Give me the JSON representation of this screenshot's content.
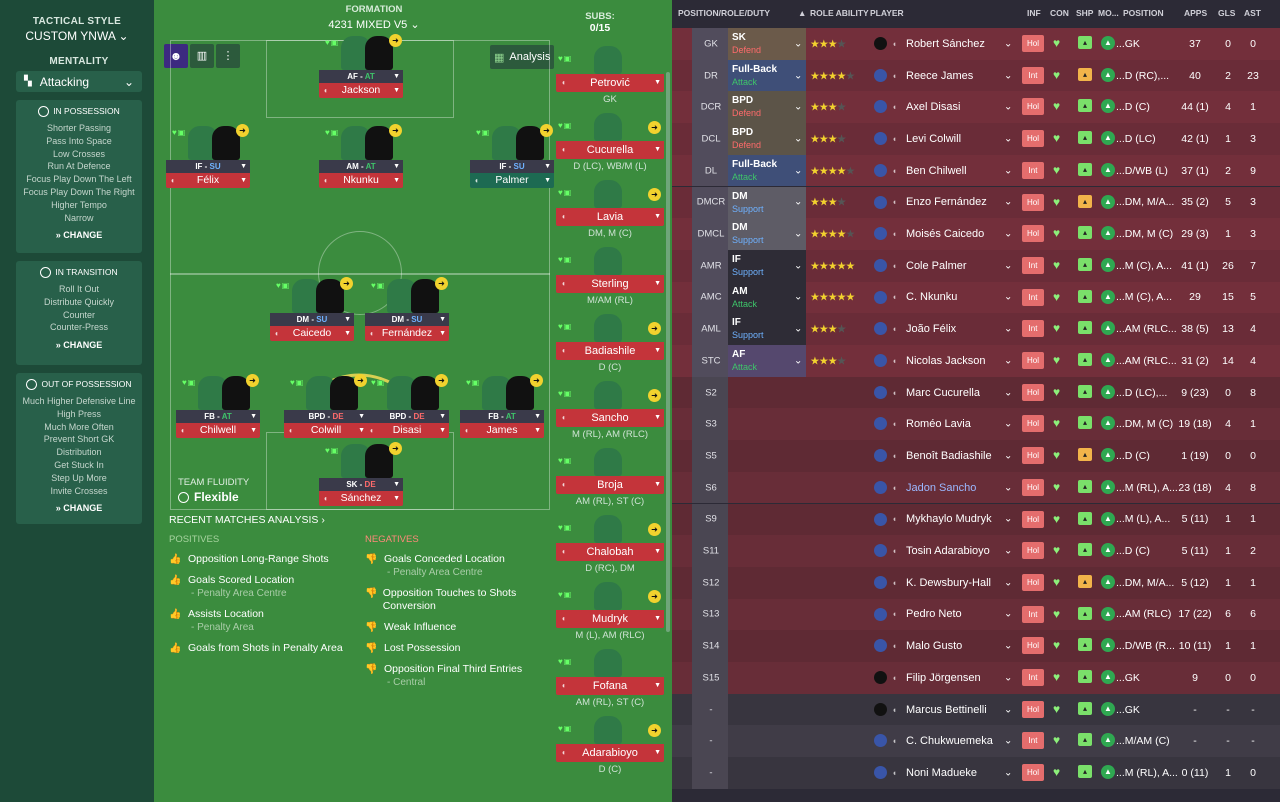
{
  "sidebar": {
    "tactical_style_label": "TACTICAL STYLE",
    "tactic_name": "CUSTOM YNWA",
    "mentality_label": "MENTALITY",
    "mentality_value": "Attacking",
    "in_possession": {
      "title": "IN POSSESSION",
      "options": [
        "Shorter Passing",
        "Pass Into Space",
        "Low Crosses",
        "Run At Defence",
        "Focus Play Down The Left",
        "Focus Play Down The Right",
        "Higher Tempo",
        "Narrow"
      ],
      "change": "CHANGE"
    },
    "in_transition": {
      "title": "IN TRANSITION",
      "options": [
        "Roll It Out",
        "Distribute Quickly",
        "Counter",
        "Counter-Press"
      ],
      "change": "CHANGE"
    },
    "out_of_possession": {
      "title": "OUT OF POSSESSION",
      "options": [
        "Much Higher Defensive Line",
        "High Press",
        "Much More Often",
        "Prevent Short GK",
        "Distribution",
        "Get Stuck In",
        "Step Up More",
        "Invite Crosses"
      ],
      "change": "CHANGE"
    }
  },
  "pitch": {
    "formation_label": "FORMATION",
    "formation_value": "4231 MIXED V5",
    "analysis_button": "Analysis",
    "team_fluidity_label": "TEAM FLUIDITY",
    "team_fluidity_value": "Flexible",
    "players": [
      {
        "role": "AF",
        "duty": "AT",
        "name": "Jackson"
      },
      {
        "role": "IF",
        "duty": "SU",
        "name": "Félix"
      },
      {
        "role": "AM",
        "duty": "AT",
        "name": "Nkunku"
      },
      {
        "role": "IF",
        "duty": "SU",
        "name": "Palmer"
      },
      {
        "role": "DM",
        "duty": "SU",
        "name": "Caicedo"
      },
      {
        "role": "DM",
        "duty": "SU",
        "name": "Fernández"
      },
      {
        "role": "FB",
        "duty": "AT",
        "name": "Chilwell"
      },
      {
        "role": "BPD",
        "duty": "DE",
        "name": "Colwill"
      },
      {
        "role": "BPD",
        "duty": "DE",
        "name": "Disasi"
      },
      {
        "role": "FB",
        "duty": "AT",
        "name": "James"
      },
      {
        "role": "SK",
        "duty": "DE",
        "name": "Sánchez"
      }
    ]
  },
  "subs": {
    "label": "SUBS:",
    "count": "0/15",
    "items": [
      {
        "name": "Petrović",
        "pos": "GK"
      },
      {
        "name": "Cucurella",
        "pos": "D (LC), WB/M (L)"
      },
      {
        "name": "Lavia",
        "pos": "DM, M (C)"
      },
      {
        "name": "Sterling",
        "pos": "M/AM (RL)"
      },
      {
        "name": "Badiashile",
        "pos": "D (C)"
      },
      {
        "name": "Sancho",
        "pos": "M (RL), AM (RLC)"
      },
      {
        "name": "Broja",
        "pos": "AM (RL), ST (C)"
      },
      {
        "name": "Chalobah",
        "pos": "D (RC), DM"
      },
      {
        "name": "Mudryk",
        "pos": "M (L), AM (RLC)"
      },
      {
        "name": "Fofana",
        "pos": "AM (RL), ST (C)"
      },
      {
        "name": "Adarabioyo",
        "pos": "D (C)"
      }
    ]
  },
  "analysis": {
    "title": "RECENT MATCHES ANALYSIS",
    "positives_label": "POSITIVES",
    "negatives_label": "NEGATIVES",
    "positives": [
      {
        "text": "Opposition Long-Range Shots",
        "sub": ""
      },
      {
        "text": "Goals Scored Location",
        "sub": "- Penalty Area Centre"
      },
      {
        "text": "Assists Location",
        "sub": "- Penalty Area"
      },
      {
        "text": "Goals from Shots in Penalty Area",
        "sub": ""
      }
    ],
    "negatives": [
      {
        "text": "Goals Conceded Location",
        "sub": "- Penalty Area Centre"
      },
      {
        "text": "Opposition Touches to Shots Conversion",
        "sub": ""
      },
      {
        "text": "Weak Influence",
        "sub": ""
      },
      {
        "text": "Lost Possession",
        "sub": ""
      },
      {
        "text": "Opposition Final Third Entries",
        "sub": "- Central"
      }
    ]
  },
  "table": {
    "headers": {
      "prd": "POSITION/ROLE/DUTY",
      "ra": "ROLE ABILITY",
      "player": "PLAYER",
      "inf": "INF",
      "con": "CON",
      "shp": "SHP",
      "mo": "MO...",
      "pos": "POSITION",
      "apps": "APPS",
      "gls": "GLS",
      "ast": "AST"
    },
    "rows": [
      {
        "slot": "GK",
        "role": "SK",
        "duty": "Defend",
        "stars": 2.5,
        "player": "Robert Sánchez",
        "inf": "Hol",
        "pos": "...GK",
        "apps": "37",
        "gls": "0",
        "ast": "0"
      },
      {
        "slot": "DR",
        "role": "Full-Back",
        "duty": "Attack",
        "stars": 4,
        "player": "Reece James",
        "inf": "Int",
        "pos": "...D (RC),...",
        "apps": "40",
        "gls": "2",
        "ast": "23"
      },
      {
        "slot": "DCR",
        "role": "BPD",
        "duty": "Defend",
        "stars": 3,
        "player": "Axel Disasi",
        "inf": "Hol",
        "pos": "...D (C)",
        "apps": "44 (1)",
        "gls": "4",
        "ast": "1"
      },
      {
        "slot": "DCL",
        "role": "BPD",
        "duty": "Defend",
        "stars": 3,
        "player": "Levi Colwill",
        "inf": "Hol",
        "pos": "...D (LC)",
        "apps": "42 (1)",
        "gls": "1",
        "ast": "3"
      },
      {
        "slot": "DL",
        "role": "Full-Back",
        "duty": "Attack",
        "stars": 3.5,
        "player": "Ben Chilwell",
        "inf": "Int",
        "pos": "...D/WB (L)",
        "apps": "37 (1)",
        "gls": "2",
        "ast": "9"
      },
      {
        "slot": "DMCR",
        "role": "DM",
        "duty": "Support",
        "stars": 3,
        "player": "Enzo Fernández",
        "inf": "Hol",
        "pos": "...DM, M/A...",
        "apps": "35 (2)",
        "gls": "5",
        "ast": "3"
      },
      {
        "slot": "DMCL",
        "role": "DM",
        "duty": "Support",
        "stars": 3.5,
        "player": "Moisés Caicedo",
        "inf": "Hol",
        "pos": "...DM, M (C)",
        "apps": "29 (3)",
        "gls": "1",
        "ast": "3"
      },
      {
        "slot": "AMR",
        "role": "IF",
        "duty": "Support",
        "stars": 4.5,
        "player": "Cole Palmer",
        "inf": "Int",
        "pos": "...M (C), A...",
        "apps": "41 (1)",
        "gls": "26",
        "ast": "7"
      },
      {
        "slot": "AMC",
        "role": "AM",
        "duty": "Attack",
        "stars": 4.5,
        "player": "C. Nkunku",
        "inf": "Int",
        "pos": "...M (C), A...",
        "apps": "29",
        "gls": "15",
        "ast": "5"
      },
      {
        "slot": "AML",
        "role": "IF",
        "duty": "Support",
        "stars": 2.5,
        "player": "João Félix",
        "inf": "Int",
        "pos": "...AM (RLC...",
        "apps": "38 (5)",
        "gls": "13",
        "ast": "4"
      },
      {
        "slot": "STC",
        "role": "AF",
        "duty": "Attack",
        "stars": 3,
        "player": "Nicolas Jackson",
        "inf": "Hol",
        "pos": "...AM (RLC...",
        "apps": "31 (2)",
        "gls": "14",
        "ast": "4"
      },
      {
        "slot": "S2",
        "role": "",
        "duty": "",
        "stars": 0,
        "player": "Marc Cucurella",
        "inf": "Hol",
        "pos": "...D (LC),...",
        "apps": "9 (23)",
        "gls": "0",
        "ast": "8"
      },
      {
        "slot": "S3",
        "role": "",
        "duty": "",
        "stars": 0,
        "player": "Roméo Lavia",
        "inf": "Hol",
        "pos": "...DM, M (C)",
        "apps": "19 (18)",
        "gls": "4",
        "ast": "1"
      },
      {
        "slot": "S5",
        "role": "",
        "duty": "",
        "stars": 0,
        "player": "Benoît Badiashile",
        "inf": "Hol",
        "pos": "...D (C)",
        "apps": "1 (19)",
        "gls": "0",
        "ast": "0"
      },
      {
        "slot": "S6",
        "role": "",
        "duty": "",
        "stars": 0,
        "player": "Jadon Sancho",
        "inf": "Hol",
        "pos": "...M (RL), A...",
        "apps": "23 (18)",
        "gls": "4",
        "ast": "8"
      },
      {
        "slot": "S9",
        "role": "",
        "duty": "",
        "stars": 0,
        "player": "Mykhaylo Mudryk",
        "inf": "Hol",
        "pos": "...M (L), A...",
        "apps": "5 (11)",
        "gls": "1",
        "ast": "1"
      },
      {
        "slot": "S11",
        "role": "",
        "duty": "",
        "stars": 0,
        "player": "Tosin Adarabioyo",
        "inf": "Hol",
        "pos": "...D (C)",
        "apps": "5 (11)",
        "gls": "1",
        "ast": "2"
      },
      {
        "slot": "S12",
        "role": "",
        "duty": "",
        "stars": 0,
        "player": "K. Dewsbury-Hall",
        "inf": "Hol",
        "pos": "...DM, M/A...",
        "apps": "5 (12)",
        "gls": "1",
        "ast": "1"
      },
      {
        "slot": "S13",
        "role": "",
        "duty": "",
        "stars": 0,
        "player": "Pedro Neto",
        "inf": "Int",
        "pos": "...AM (RLC)",
        "apps": "17 (22)",
        "gls": "6",
        "ast": "6"
      },
      {
        "slot": "S14",
        "role": "",
        "duty": "",
        "stars": 0,
        "player": "Malo Gusto",
        "inf": "Hol",
        "pos": "...D/WB (R...",
        "apps": "10 (11)",
        "gls": "1",
        "ast": "1"
      },
      {
        "slot": "S15",
        "role": "",
        "duty": "",
        "stars": 0,
        "player": "Filip Jörgensen",
        "inf": "Int",
        "pos": "...GK",
        "apps": "9",
        "gls": "0",
        "ast": "0"
      },
      {
        "slot": "-",
        "role": "",
        "duty": "",
        "stars": 0,
        "player": "Marcus Bettinelli",
        "inf": "Hol",
        "pos": "...GK",
        "apps": "-",
        "gls": "-",
        "ast": "-"
      },
      {
        "slot": "-",
        "role": "",
        "duty": "",
        "stars": 0,
        "player": "C. Chukwuemeka",
        "inf": "Int",
        "pos": "...M/AM (C)",
        "apps": "-",
        "gls": "-",
        "ast": "-"
      },
      {
        "slot": "-",
        "role": "",
        "duty": "",
        "stars": 0,
        "player": "Noni Madueke",
        "inf": "Hol",
        "pos": "...M (RL), A...",
        "apps": "0 (11)",
        "gls": "1",
        "ast": "0"
      }
    ]
  },
  "colors": {
    "sidebar_bg": "#1d4a38",
    "pitch": "#3b8c3e",
    "name_bar": "#c4343a",
    "attack": "#3ec46a",
    "support": "#6fb2ff",
    "defend": "#ff6b6b",
    "star": "#f2d22e"
  }
}
